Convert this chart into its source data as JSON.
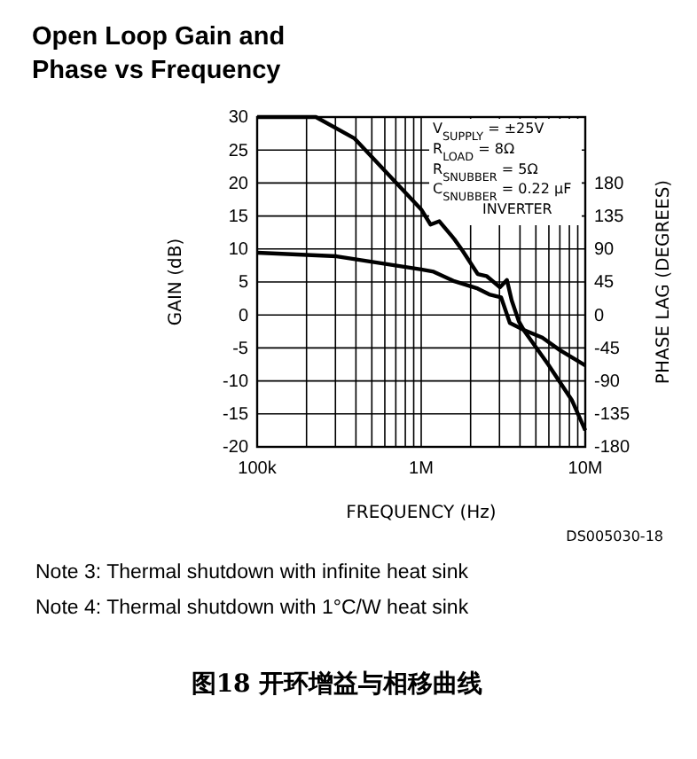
{
  "chart_data": {
    "type": "line",
    "title": "Open Loop Gain and Phase vs Frequency",
    "xlabel": "FREQUENCY (Hz)",
    "ylabel": "GAIN (dB)",
    "y2label": "PHASE LAG (DEGREES)",
    "series": [
      {
        "color": "#000000",
        "x": [
          100000,
          228000,
          390000,
          1000000,
          1140000,
          1290000,
          1590000,
          1790000,
          2210000,
          2500000,
          3020000,
          3330000,
          3560000,
          3940000,
          4270000,
          5940000,
          8280000,
          10000000
        ],
        "values": [
          30,
          30,
          26.8,
          16.0,
          13.7,
          14.2,
          11.5,
          9.7,
          6.2,
          5.9,
          4.2,
          5.3,
          2.2,
          -1.0,
          -2.5,
          -7.5,
          -12.9,
          -17.5
        ]
      },
      {
        "color": "#000000",
        "axis": "y2",
        "x": [
          100000,
          305000,
          1000000,
          1190000,
          1590000,
          2210000,
          2600000,
          3070000,
          3470000,
          4270000,
          5470000,
          7000000,
          10000000
        ],
        "values": [
          85,
          80,
          62,
          59,
          46,
          36,
          28,
          24,
          -11,
          -21,
          -31,
          -48,
          -69
        ]
      }
    ],
    "xlim": [
      100000,
      10000000
    ],
    "ylim": [
      -20,
      30
    ],
    "y2lim": [
      -180,
      270
    ],
    "log": "x",
    "xticks": [
      {
        "value": 100000,
        "label": "100k"
      },
      {
        "value": 200000,
        "label": null
      },
      {
        "value": 300000,
        "label": null
      },
      {
        "value": 400000,
        "label": null
      },
      {
        "value": 500000,
        "label": null
      },
      {
        "value": 600000,
        "label": null
      },
      {
        "value": 700000,
        "label": null
      },
      {
        "value": 800000,
        "label": null
      },
      {
        "value": 900000,
        "label": null
      },
      {
        "value": 1000000,
        "label": "1M"
      },
      {
        "value": 2000000,
        "label": null
      },
      {
        "value": 3000000,
        "label": null
      },
      {
        "value": 4000000,
        "label": null
      },
      {
        "value": 5000000,
        "label": null
      },
      {
        "value": 6000000,
        "label": null
      },
      {
        "value": 7000000,
        "label": null
      },
      {
        "value": 8000000,
        "label": null
      },
      {
        "value": 9000000,
        "label": null
      },
      {
        "value": 10000000,
        "label": "10M"
      }
    ],
    "yticks": [
      -20,
      -15,
      -10,
      -5,
      0,
      5,
      10,
      15,
      20,
      25,
      30
    ],
    "y2ticks": [
      -180,
      -135,
      -90,
      -45,
      0,
      45,
      90,
      135,
      180
    ],
    "grid": true,
    "annotations": [
      "V$_{SUPPLY}$ = ±25V",
      "R$_{LOAD}$ = 8Ω",
      "R$_{SNUBBER}$ = 5Ω",
      "C$_{SNUBBER}$ = 0.22 μF",
      "INVERTER",
      "DS005030-18",
      "Note 3:  Thermal shutdown with infinite heat sink",
      "Note 4:  Thermal shutdown with 1°C/W heat sink",
      "图18 开环增益与相移曲线"
    ]
  }
}
